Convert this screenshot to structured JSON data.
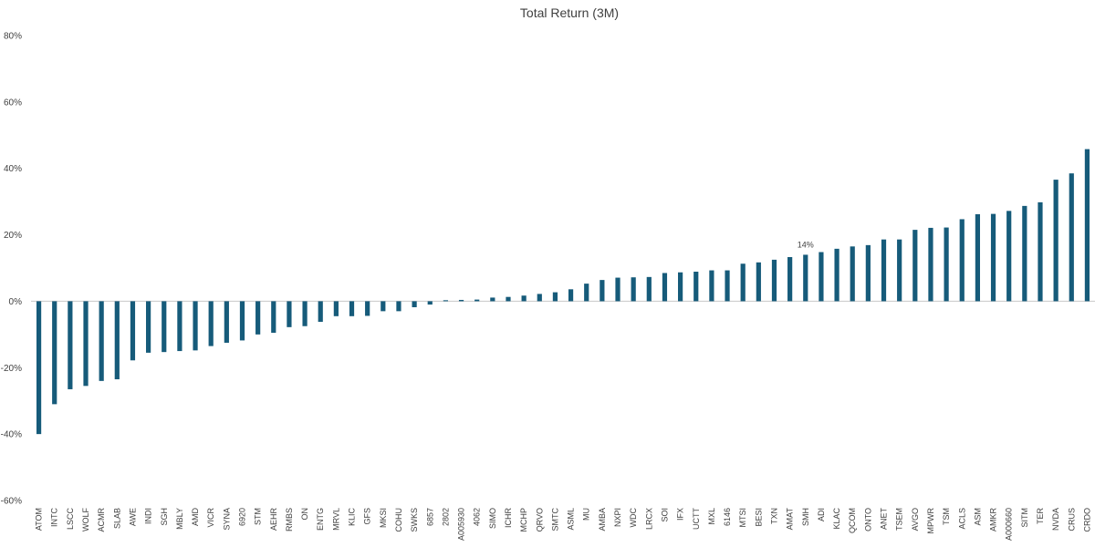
{
  "chart_data": {
    "type": "bar",
    "title": "Total Return (3M)",
    "xlabel": "",
    "ylabel": "",
    "ylim": [
      -0.6,
      0.8
    ],
    "yticks": [
      -0.6,
      -0.4,
      -0.2,
      0,
      0.2,
      0.4,
      0.6,
      0.8
    ],
    "ytick_labels": [
      "-60%",
      "-40%",
      "-20%",
      "0%",
      "20%",
      "40%",
      "60%",
      "80%"
    ],
    "grid": false,
    "legend": "none",
    "bar_color": "#165b7a",
    "categories": [
      "ATOM",
      "INTC",
      "LSCC",
      "WOLF",
      "ACMR",
      "SLAB",
      "AWE",
      "INDI",
      "SGH",
      "MBLY",
      "AMD",
      "VICR",
      "SYNA",
      "6920",
      "STM",
      "AEHR",
      "RMBS",
      "ON",
      "ENTG",
      "MRVL",
      "KLIC",
      "GFS",
      "MKSI",
      "COHU",
      "SWKS",
      "6857",
      "2802",
      "A005930",
      "4062",
      "SIMO",
      "ICHR",
      "MCHP",
      "QRVO",
      "SMTC",
      "ASML",
      "MU",
      "AMBA",
      "NXPI",
      "WDC",
      "LRCX",
      "SOI",
      "IFX",
      "UCTT",
      "MXL",
      "6146",
      "MTSI",
      "BESI",
      "TXN",
      "AMAT",
      "SMH",
      "ADI",
      "KLAC",
      "QCOM",
      "ONTO",
      "ANET",
      "TSEM",
      "AVGO",
      "MPWR",
      "TSM",
      "ACLS",
      "ASM",
      "AMKR",
      "A000660",
      "SITM",
      "TER",
      "NVDA",
      "CRUS",
      "CRDO"
    ],
    "values": [
      -0.4,
      -0.31,
      -0.265,
      -0.255,
      -0.24,
      -0.235,
      -0.178,
      -0.155,
      -0.153,
      -0.15,
      -0.148,
      -0.135,
      -0.125,
      -0.118,
      -0.1,
      -0.095,
      -0.078,
      -0.075,
      -0.062,
      -0.045,
      -0.045,
      -0.044,
      -0.03,
      -0.03,
      -0.018,
      -0.01,
      0.003,
      0.004,
      0.005,
      0.011,
      0.013,
      0.017,
      0.022,
      0.027,
      0.036,
      0.053,
      0.064,
      0.071,
      0.072,
      0.073,
      0.085,
      0.087,
      0.089,
      0.093,
      0.093,
      0.113,
      0.117,
      0.125,
      0.133,
      0.14,
      0.148,
      0.158,
      0.165,
      0.169,
      0.186,
      0.186,
      0.215,
      0.221,
      0.222,
      0.247,
      0.262,
      0.263,
      0.272,
      0.287,
      0.298,
      0.366,
      0.385,
      0.458
    ],
    "annotations": [
      {
        "category": "SMH",
        "text": "14%"
      }
    ]
  }
}
